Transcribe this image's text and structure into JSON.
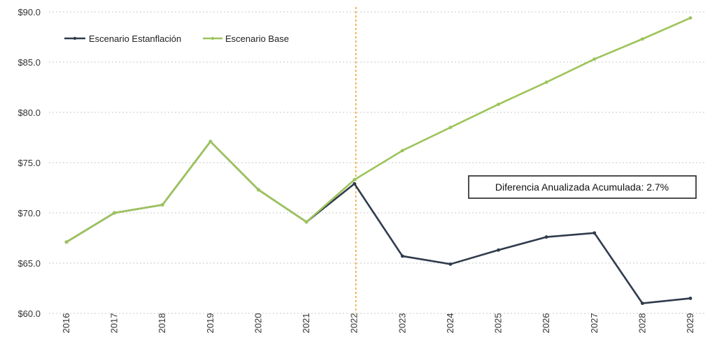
{
  "chart_data": {
    "type": "line",
    "title": "",
    "xlabel": "",
    "ylabel": "",
    "x": [
      "2016",
      "2017",
      "2018",
      "2019",
      "2020",
      "2021",
      "2022",
      "2023",
      "2024",
      "2025",
      "2026",
      "2027",
      "2028",
      "2029"
    ],
    "ylim": [
      60,
      90
    ],
    "yticks": [
      60,
      65,
      70,
      75,
      80,
      85,
      90
    ],
    "ytick_labels": [
      "$60.0",
      "$65.0",
      "$70.0",
      "$75.0",
      "$80.0",
      "$85.0",
      "$90.0"
    ],
    "grid": true,
    "legend_position": "top-left",
    "vertical_marker": "2022",
    "series": [
      {
        "name": "Escenario Estanflación",
        "color": "#2f3b4c",
        "values": [
          67.1,
          70.0,
          70.8,
          77.1,
          72.3,
          69.1,
          72.9,
          65.7,
          64.9,
          66.3,
          67.6,
          68.0,
          61.0,
          61.5
        ]
      },
      {
        "name": "Escenario Base",
        "color": "#9dc45a",
        "values": [
          67.1,
          70.0,
          70.8,
          77.1,
          72.3,
          69.1,
          73.3,
          76.2,
          78.5,
          80.8,
          83.0,
          85.3,
          87.3,
          89.4
        ]
      }
    ],
    "annotation": "Diferencia Anualizada Acumulada: 2.7%"
  }
}
